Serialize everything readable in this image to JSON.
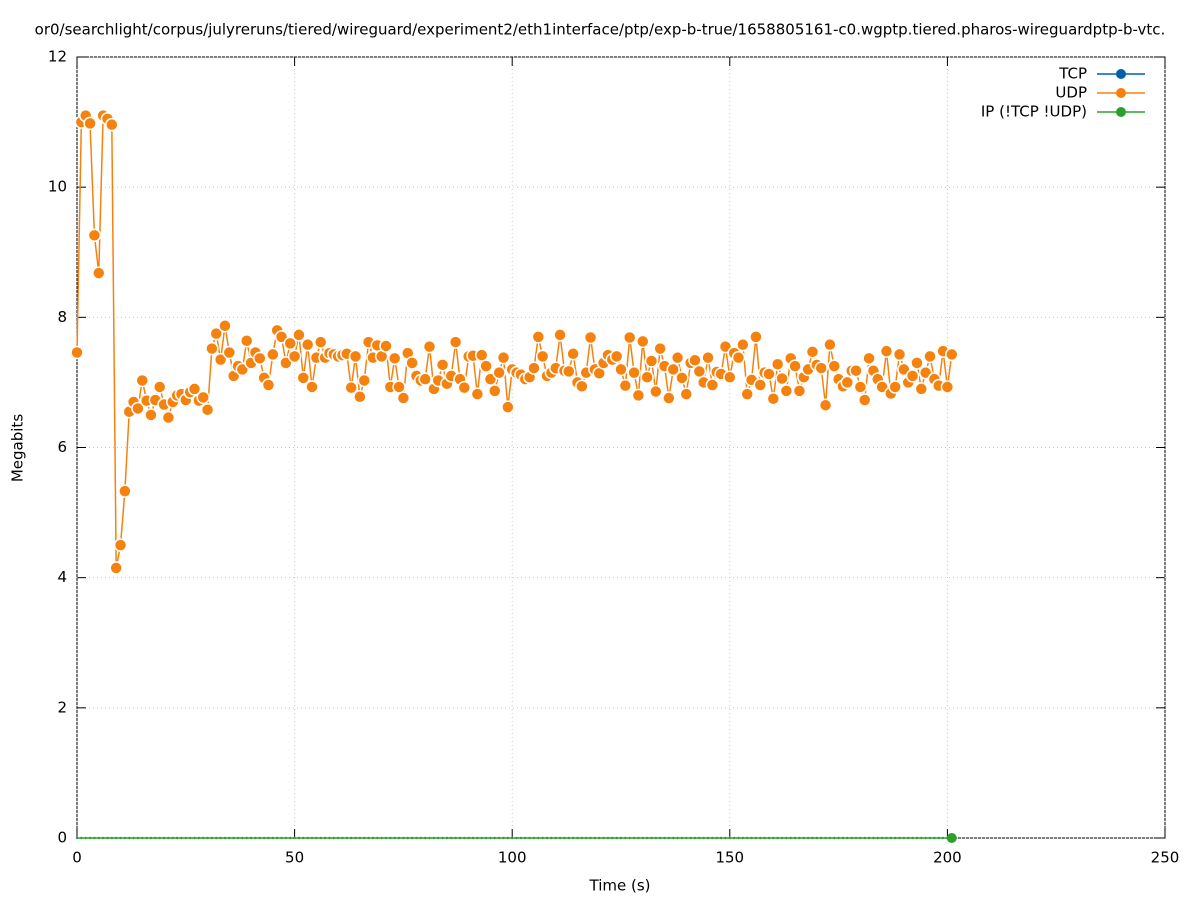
{
  "chart_data": {
    "type": "line",
    "title": "or0/searchlight/corpus/julyreruns/tiered/wireguard/experiment2/eth1interface/ptp/exp-b-true/1658805161-c0.wgptp.tiered.pharos-wireguardptp-b-vtc.",
    "xlabel": "Time (s)",
    "ylabel": "Megabits",
    "xlim": [
      0,
      250
    ],
    "ylim": [
      0,
      12
    ],
    "xticks": [
      0,
      50,
      100,
      150,
      200,
      250
    ],
    "yticks": [
      0,
      2,
      4,
      6,
      8,
      10,
      12
    ],
    "grid": true,
    "legend": "upper right",
    "x": [
      0,
      1,
      2,
      3,
      4,
      5,
      6,
      7,
      8,
      9,
      10,
      11,
      12,
      13,
      14,
      15,
      16,
      17,
      18,
      19,
      20,
      21,
      22,
      23,
      24,
      25,
      26,
      27,
      28,
      29,
      30,
      31,
      32,
      33,
      34,
      35,
      36,
      37,
      38,
      39,
      40,
      41,
      42,
      43,
      44,
      45,
      46,
      47,
      48,
      49,
      50,
      51,
      52,
      53,
      54,
      55,
      56,
      57,
      58,
      59,
      60,
      61,
      62,
      63,
      64,
      65,
      66,
      67,
      68,
      69,
      70,
      71,
      72,
      73,
      74,
      75,
      76,
      77,
      78,
      79,
      80,
      81,
      82,
      83,
      84,
      85,
      86,
      87,
      88,
      89,
      90,
      91,
      92,
      93,
      94,
      95,
      96,
      97,
      98,
      99,
      100,
      101,
      102,
      103,
      104,
      105,
      106,
      107,
      108,
      109,
      110,
      111,
      112,
      113,
      114,
      115,
      116,
      117,
      118,
      119,
      120,
      121,
      122,
      123,
      124,
      125,
      126,
      127,
      128,
      129,
      130,
      131,
      132,
      133,
      134,
      135,
      136,
      137,
      138,
      139,
      140,
      141,
      142,
      143,
      144,
      145,
      146,
      147,
      148,
      149,
      150,
      151,
      152,
      153,
      154,
      155,
      156,
      157,
      158,
      159,
      160,
      161,
      162,
      163,
      164,
      165,
      166,
      167,
      168,
      169,
      170,
      171,
      172,
      173,
      174,
      175,
      176,
      177,
      178,
      179,
      180,
      181,
      182,
      183,
      184,
      185,
      186,
      187,
      188,
      189,
      190,
      191,
      192,
      193,
      194,
      195,
      196,
      197,
      198,
      199,
      200,
      201
    ],
    "series": [
      {
        "name": "TCP",
        "color": "#0060ad",
        "values": [
          null,
          null,
          null,
          null,
          null,
          null,
          null,
          null,
          null,
          null,
          null,
          null,
          null,
          null,
          null,
          null,
          null,
          null,
          null,
          null,
          null,
          null,
          null,
          null,
          null,
          null,
          null,
          null,
          null,
          null,
          null,
          null,
          null,
          null,
          null,
          null,
          null,
          null,
          null,
          null,
          null,
          null,
          null,
          null,
          null,
          null,
          null,
          null,
          null,
          null,
          null,
          null,
          null,
          null,
          null,
          null,
          null,
          null,
          null,
          null,
          null,
          null,
          null,
          null,
          null,
          null,
          null,
          null,
          null,
          null,
          null,
          null,
          null,
          null,
          null,
          null,
          null,
          null,
          null,
          null,
          null,
          null,
          null,
          null,
          null,
          null,
          null,
          null,
          null,
          null,
          null,
          null,
          null,
          null,
          null,
          null,
          null,
          null,
          null,
          null,
          null,
          null,
          null,
          null,
          null,
          null,
          null,
          null,
          null,
          null,
          null,
          null,
          null,
          null,
          null,
          null,
          null,
          null,
          null,
          null,
          null,
          null,
          null,
          null,
          null,
          null,
          null,
          null,
          null,
          null,
          null,
          null,
          null,
          null,
          null,
          null,
          null,
          null,
          null,
          null,
          null,
          null,
          null,
          null,
          null,
          null,
          null,
          null,
          null,
          null,
          null,
          null,
          null,
          null,
          null,
          null,
          null,
          null,
          null,
          null,
          null,
          null,
          null,
          null,
          null,
          null,
          null,
          null,
          null,
          null,
          null,
          null,
          null,
          null,
          null,
          null,
          null,
          null,
          null,
          null,
          null,
          null,
          null,
          null,
          null,
          null,
          null,
          null,
          null,
          null,
          null,
          null,
          null,
          null,
          null,
          null,
          null,
          null,
          null,
          null,
          null,
          null
        ]
      },
      {
        "name": "UDP",
        "color": "#f5820f",
        "values": [
          7.46,
          11.0,
          11.1,
          10.98,
          9.26,
          8.68,
          11.1,
          11.05,
          10.96,
          4.15,
          4.5,
          5.33,
          6.55,
          6.7,
          6.6,
          7.03,
          6.72,
          6.5,
          6.73,
          6.93,
          6.66,
          6.46,
          6.7,
          6.8,
          6.82,
          6.73,
          6.85,
          6.9,
          6.72,
          6.77,
          6.58,
          7.52,
          7.75,
          7.35,
          7.87,
          7.46,
          7.1,
          7.25,
          7.2,
          7.64,
          7.3,
          7.46,
          7.37,
          7.07,
          6.96,
          7.43,
          7.8,
          7.7,
          7.3,
          7.6,
          7.4,
          7.73,
          7.07,
          7.58,
          6.93,
          7.38,
          7.62,
          7.38,
          7.45,
          7.43,
          7.4,
          7.42,
          7.44,
          6.92,
          7.4,
          6.78,
          7.03,
          7.62,
          7.38,
          7.57,
          7.4,
          7.56,
          6.93,
          7.37,
          6.93,
          6.76,
          7.45,
          7.3,
          7.1,
          7.03,
          7.05,
          7.55,
          6.9,
          7.03,
          7.27,
          6.98,
          7.1,
          7.62,
          7.05,
          6.92,
          7.4,
          7.41,
          6.82,
          7.42,
          7.25,
          7.05,
          6.87,
          7.15,
          7.38,
          6.62,
          7.2,
          7.15,
          7.12,
          7.05,
          7.08,
          7.22,
          7.7,
          7.4,
          7.1,
          7.15,
          7.22,
          7.73,
          7.18,
          7.17,
          7.44,
          7.0,
          6.94,
          7.15,
          7.69,
          7.2,
          7.14,
          7.3,
          7.42,
          7.35,
          7.4,
          7.2,
          6.95,
          7.69,
          7.15,
          6.8,
          7.63,
          7.08,
          7.33,
          6.86,
          7.52,
          7.25,
          6.76,
          7.2,
          7.38,
          7.07,
          6.82,
          7.3,
          7.34,
          7.17,
          7.0,
          7.38,
          6.96,
          7.16,
          7.13,
          7.55,
          7.08,
          7.45,
          7.38,
          7.58,
          6.82,
          7.04,
          7.7,
          6.96,
          7.15,
          7.13,
          6.75,
          7.28,
          7.06,
          6.87,
          7.37,
          7.25,
          6.87,
          7.08,
          7.2,
          7.47,
          7.27,
          7.22,
          6.65,
          7.58,
          7.25,
          7.05,
          6.94,
          7.0,
          7.18,
          7.18,
          6.93,
          6.73,
          7.37,
          7.18,
          7.05,
          6.93,
          7.48,
          6.83,
          6.93,
          7.43,
          7.2,
          7.0,
          7.1,
          7.3,
          6.9,
          7.15,
          7.4,
          7.05,
          6.95,
          7.48,
          6.93,
          7.43
        ]
      },
      {
        "name": "IP (!TCP  !UDP)",
        "color": "#2ca02c",
        "values": [
          0,
          0,
          0,
          0,
          0,
          0,
          0,
          0,
          0,
          0,
          0,
          0,
          0,
          0,
          0,
          0,
          0,
          0,
          0,
          0,
          0,
          0,
          0,
          0,
          0,
          0,
          0,
          0,
          0,
          0,
          0,
          0,
          0,
          0,
          0,
          0,
          0,
          0,
          0,
          0,
          0,
          0,
          0,
          0,
          0,
          0,
          0,
          0,
          0,
          0,
          0,
          0,
          0,
          0,
          0,
          0,
          0,
          0,
          0,
          0,
          0,
          0,
          0,
          0,
          0,
          0,
          0,
          0,
          0,
          0,
          0,
          0,
          0,
          0,
          0,
          0,
          0,
          0,
          0,
          0,
          0,
          0,
          0,
          0,
          0,
          0,
          0,
          0,
          0,
          0,
          0,
          0,
          0,
          0,
          0,
          0,
          0,
          0,
          0,
          0,
          0,
          0,
          0,
          0,
          0,
          0,
          0,
          0,
          0,
          0,
          0,
          0,
          0,
          0,
          0,
          0,
          0,
          0,
          0,
          0,
          0,
          0,
          0,
          0,
          0,
          0,
          0,
          0,
          0,
          0,
          0,
          0,
          0,
          0,
          0,
          0,
          0,
          0,
          0,
          0,
          0,
          0,
          0,
          0,
          0,
          0,
          0,
          0,
          0,
          0,
          0,
          0,
          0,
          0,
          0,
          0,
          0,
          0,
          0,
          0,
          0,
          0,
          0,
          0,
          0,
          0,
          0,
          0,
          0,
          0,
          0,
          0,
          0,
          0,
          0,
          0,
          0,
          0,
          0,
          0,
          0,
          0,
          0,
          0,
          0,
          0,
          0,
          0,
          0,
          0,
          0,
          0,
          0,
          0,
          0,
          0,
          0,
          0,
          0,
          0,
          0,
          0
        ]
      }
    ]
  }
}
